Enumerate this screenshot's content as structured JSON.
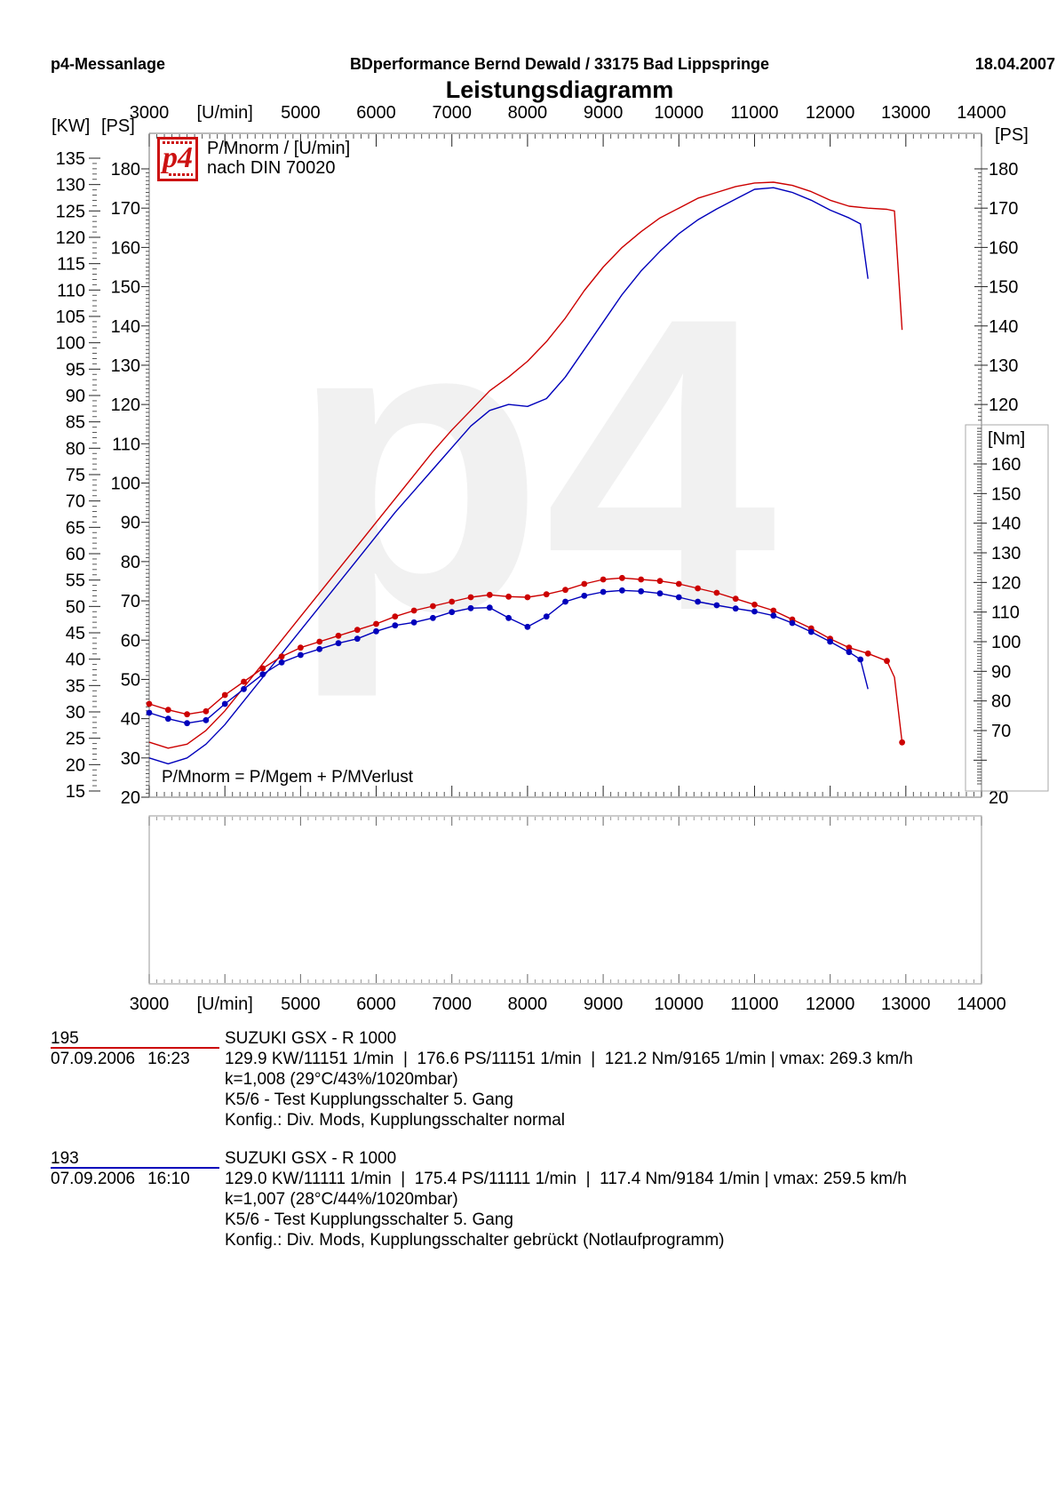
{
  "header": {
    "left": "p4-Messanlage",
    "center": "BDperformance Bernd Dewald / 33175 Bad Lippspringe",
    "date": "18.04.2007"
  },
  "title": "Leistungsdiagramm",
  "legend": {
    "logo": "p4",
    "line1": "P/Mnorm / [U/min]",
    "line2": "nach DIN 70020"
  },
  "annotation": "P/Mnorm = P/Mgem + P/MVerlust",
  "colors": {
    "red": "#cc0000",
    "blue": "#0000bb",
    "logo_red": "#cc1111",
    "watermark": "#f1f1f1",
    "axis_major": "#222222",
    "axis_minor": "#555555",
    "box_gray": "#999999"
  },
  "chart_data": {
    "type": "line",
    "title": "Leistungsdiagramm",
    "watermark": "p4",
    "x_axis": {
      "label": "[U/min]",
      "min": 3000,
      "max": 14000,
      "major_tick": 1000,
      "minor_tick": 100,
      "labels": [
        {
          "text": "3000",
          "rpm": 3000
        },
        {
          "text": "[U/min]",
          "rpm": 4000
        },
        {
          "text": "5000",
          "rpm": 5000
        },
        {
          "text": "6000",
          "rpm": 6000
        },
        {
          "text": "7000",
          "rpm": 7000
        },
        {
          "text": "8000",
          "rpm": 8000
        },
        {
          "text": "9000",
          "rpm": 9000
        },
        {
          "text": "10000",
          "rpm": 10000
        },
        {
          "text": "11000",
          "rpm": 11000
        },
        {
          "text": "12000",
          "rpm": 12000
        },
        {
          "text": "13000",
          "rpm": 13000
        },
        {
          "text": "14000",
          "rpm": 14000
        }
      ]
    },
    "y_axes": [
      {
        "id": "kw",
        "label": "[KW]",
        "min": 15,
        "max": 135,
        "label_step": 5,
        "side": "far-left"
      },
      {
        "id": "ps",
        "label": "[PS]",
        "min": 20,
        "max": 180,
        "label_step": 10,
        "side": "left-and-right",
        "right_visible_labels": [
          180,
          170,
          160,
          150,
          140,
          130,
          120,
          20
        ]
      },
      {
        "id": "nm",
        "label": "[Nm]",
        "min": 70,
        "max": 160,
        "label_step": 10,
        "side": "right-inset-box"
      }
    ],
    "series": [
      {
        "name": "195",
        "quantity": "Leistung",
        "unit": "PS",
        "axis": "ps",
        "color": "#cc0000",
        "markers": false,
        "x": [
          3000,
          3250,
          3500,
          3750,
          4000,
          4250,
          4500,
          4750,
          5000,
          5250,
          5500,
          5750,
          6000,
          6250,
          6500,
          6750,
          7000,
          7250,
          7500,
          7750,
          8000,
          8250,
          8500,
          8750,
          9000,
          9250,
          9500,
          9750,
          10000,
          10250,
          10500,
          10750,
          11000,
          11250,
          11500,
          11750,
          12000,
          12250,
          12500,
          12750,
          12850,
          12950
        ],
        "y": [
          34,
          32.5,
          33.5,
          37,
          42,
          48,
          54,
          60,
          66,
          72,
          78,
          84,
          90,
          96,
          102,
          108,
          113.5,
          118.5,
          123.5,
          127,
          131,
          136,
          142,
          149,
          155,
          160,
          164,
          167.5,
          170,
          172.5,
          174,
          175.5,
          176.4,
          176.6,
          175.8,
          174.2,
          172,
          170.5,
          170,
          169.7,
          169.3,
          139
        ]
      },
      {
        "name": "193",
        "quantity": "Leistung",
        "unit": "PS",
        "axis": "ps",
        "color": "#0000bb",
        "markers": false,
        "x": [
          3000,
          3250,
          3500,
          3750,
          4000,
          4250,
          4500,
          4750,
          5000,
          5250,
          5500,
          5750,
          6000,
          6250,
          6500,
          6750,
          7000,
          7250,
          7500,
          7750,
          8000,
          8250,
          8500,
          8750,
          9000,
          9250,
          9500,
          9750,
          10000,
          10250,
          10500,
          10750,
          11000,
          11250,
          11500,
          11750,
          12000,
          12250,
          12400,
          12500
        ],
        "y": [
          30,
          28.5,
          30,
          33.5,
          38.5,
          44.5,
          50.5,
          56.5,
          62.5,
          68.5,
          74.5,
          80.5,
          86.5,
          92.5,
          98,
          103.5,
          109,
          114.5,
          118.5,
          120,
          119.5,
          121.5,
          127,
          134,
          141,
          148,
          154,
          159,
          163.5,
          167,
          169.8,
          172.3,
          174.8,
          175.2,
          174,
          172,
          169.5,
          167.5,
          166,
          152
        ]
      },
      {
        "name": "195",
        "quantity": "Drehmoment",
        "unit": "Nm",
        "axis": "nm",
        "color": "#cc0000",
        "markers": true,
        "no_marker_x": [
          12850
        ],
        "x": [
          3000,
          3250,
          3500,
          3750,
          4000,
          4250,
          4500,
          4750,
          5000,
          5250,
          5500,
          5750,
          6000,
          6250,
          6500,
          6750,
          7000,
          7250,
          7500,
          7750,
          8000,
          8250,
          8500,
          8750,
          9000,
          9250,
          9500,
          9750,
          10000,
          10250,
          10500,
          10750,
          11000,
          11250,
          11500,
          11750,
          12000,
          12250,
          12500,
          12750,
          12850,
          12950
        ],
        "y": [
          79,
          77,
          75.5,
          76.5,
          82,
          86.5,
          91,
          95,
          98,
          100,
          102,
          104,
          106,
          108.5,
          110.5,
          112,
          113.5,
          115,
          115.8,
          115.2,
          115,
          116,
          117.5,
          119.5,
          121,
          121.5,
          121,
          120.5,
          119.5,
          118,
          116.5,
          114.5,
          112.5,
          110.5,
          107.5,
          104.5,
          101,
          98,
          96,
          93.5,
          88,
          66
        ]
      },
      {
        "name": "193",
        "quantity": "Drehmoment",
        "unit": "Nm",
        "axis": "nm",
        "color": "#0000bb",
        "markers": true,
        "no_marker_x": [
          12500
        ],
        "x": [
          3000,
          3250,
          3500,
          3750,
          4000,
          4250,
          4500,
          4750,
          5000,
          5250,
          5500,
          5750,
          6000,
          6250,
          6500,
          6750,
          7000,
          7250,
          7500,
          7750,
          8000,
          8250,
          8500,
          8750,
          9000,
          9250,
          9500,
          9750,
          10000,
          10250,
          10500,
          10750,
          11000,
          11250,
          11500,
          11750,
          12000,
          12250,
          12400,
          12500
        ],
        "y": [
          76,
          74,
          72.5,
          73.5,
          79,
          84,
          89,
          93,
          95.5,
          97.5,
          99.5,
          101,
          103.5,
          105.5,
          106.5,
          108,
          110,
          111.3,
          111.5,
          108,
          105,
          108.5,
          113.5,
          115.5,
          116.8,
          117.3,
          117,
          116.3,
          115,
          113.5,
          112.3,
          111.2,
          110.2,
          108.8,
          106.3,
          103.3,
          100,
          96.5,
          94,
          84
        ]
      }
    ]
  },
  "runs": [
    {
      "id": "195",
      "color": "#cc0000",
      "vehicle": "SUZUKI GSX - R 1000",
      "date": "07.09.2006",
      "time": "16:23",
      "result": "129.9 KW/11151 1/min  |  176.6 PS/11151 1/min  |  121.2 Nm/9165 1/min | vmax: 269.3 km/h",
      "correction": "k=1,008 (29°C/43%/1020mbar)",
      "test": "K5/6 - Test Kupplungsschalter 5. Gang",
      "config": "Konfig.: Div. Mods, Kupplungsschalter normal"
    },
    {
      "id": "193",
      "color": "#0000bb",
      "vehicle": "SUZUKI GSX - R 1000",
      "date": "07.09.2006",
      "time": "16:10",
      "result": "129.0 KW/11111 1/min  |  175.4 PS/11111 1/min  |  117.4 Nm/9184 1/min | vmax: 259.5 km/h",
      "correction": "k=1,007 (28°C/44%/1020mbar)",
      "test": "K5/6 - Test Kupplungsschalter 5. Gang",
      "config": "Konfig.: Div. Mods, Kupplungsschalter gebrückt (Notlaufprogramm)"
    }
  ]
}
